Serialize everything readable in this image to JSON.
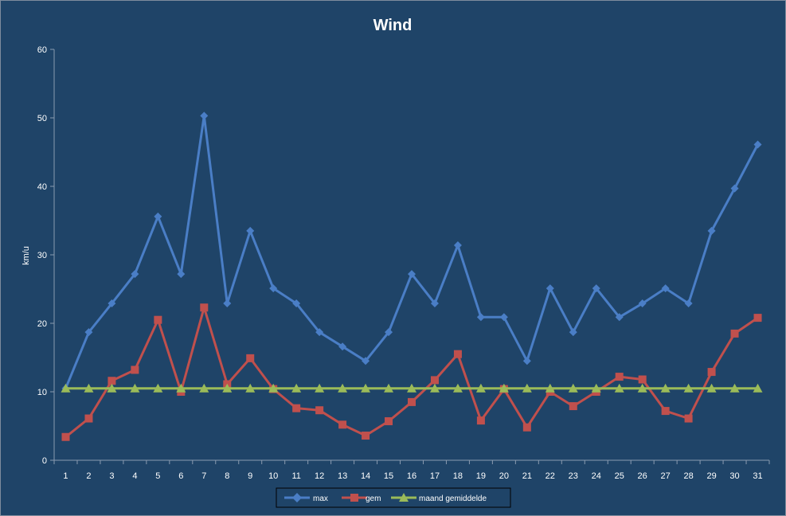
{
  "chart_data": {
    "type": "line",
    "title": "Wind",
    "xlabel": "",
    "ylabel": "km/u",
    "ylim": [
      0,
      60
    ],
    "yticks": [
      0,
      10,
      20,
      30,
      40,
      50,
      60
    ],
    "grid": false,
    "legend_position": "bottom",
    "background_color": "#1F4468",
    "categories": [
      "1",
      "2",
      "3",
      "4",
      "5",
      "6",
      "7",
      "8",
      "9",
      "10",
      "11",
      "12",
      "13",
      "14",
      "15",
      "16",
      "17",
      "18",
      "19",
      "20",
      "21",
      "22",
      "23",
      "24",
      "25",
      "26",
      "27",
      "28",
      "29",
      "30",
      "31"
    ],
    "series": [
      {
        "name": "max",
        "color": "#4A7EC6",
        "marker": "diamond",
        "values": [
          10.5,
          18.7,
          22.9,
          27.2,
          35.6,
          27.2,
          50.3,
          22.9,
          33.5,
          25.1,
          22.9,
          18.7,
          16.6,
          14.5,
          18.7,
          27.2,
          22.9,
          31.4,
          20.9,
          20.9,
          14.5,
          25.1,
          18.7,
          25.1,
          20.9,
          22.9,
          25.1,
          22.9,
          33.5,
          39.7,
          46.1
        ]
      },
      {
        "name": "gem",
        "color": "#C0504D",
        "marker": "square",
        "values": [
          3.4,
          6.1,
          11.6,
          13.2,
          20.5,
          10.0,
          22.3,
          11.1,
          14.9,
          10.4,
          7.6,
          7.3,
          5.2,
          3.6,
          5.7,
          8.5,
          11.7,
          15.5,
          5.8,
          10.4,
          4.8,
          10.0,
          7.9,
          10.0,
          12.2,
          11.8,
          7.2,
          6.1,
          12.9,
          18.5,
          20.8
        ]
      },
      {
        "name": "maand gemiddelde",
        "color": "#9BBB59",
        "marker": "triangle",
        "values": [
          10.5,
          10.5,
          10.5,
          10.5,
          10.5,
          10.5,
          10.5,
          10.5,
          10.5,
          10.5,
          10.5,
          10.5,
          10.5,
          10.5,
          10.5,
          10.5,
          10.5,
          10.5,
          10.5,
          10.5,
          10.5,
          10.5,
          10.5,
          10.5,
          10.5,
          10.5,
          10.5,
          10.5,
          10.5,
          10.5,
          10.5
        ]
      }
    ]
  }
}
